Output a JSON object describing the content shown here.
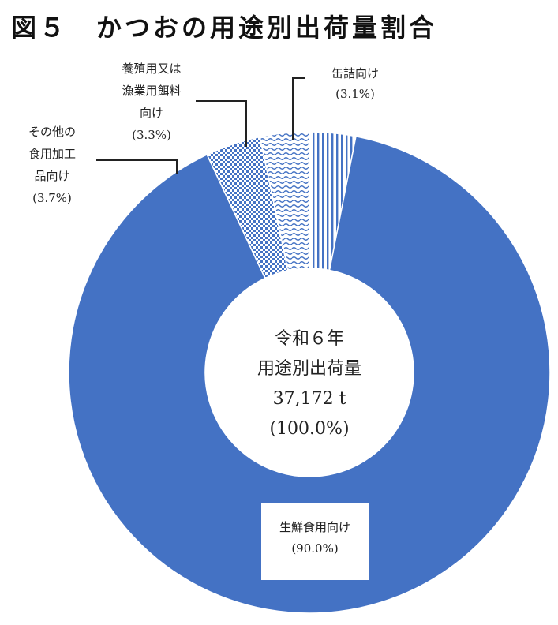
{
  "title": "図５　かつおの用途別出荷量割合",
  "chart_data": {
    "type": "pie",
    "title": "図５　かつおの用途別出荷量割合",
    "center_text": [
      "令和６年",
      "用途別出荷量",
      "37,172 t",
      "(100.0%)"
    ],
    "slices": [
      {
        "label_lines": [
          "缶詰向け",
          "(3.1%)"
        ],
        "value": 3.1,
        "fill": "vertical-stripes",
        "color": "#4472C4"
      },
      {
        "label_lines": [
          "生鮮食用向け",
          "(90.0%)"
        ],
        "value": 90.0,
        "fill": "solid",
        "color": "#4472C4"
      },
      {
        "label_lines": [
          "その他の",
          "食用加工",
          "品向け",
          "(3.7%)"
        ],
        "value": 3.7,
        "fill": "checker",
        "color": "#4472C4"
      },
      {
        "label_lines": [
          "養殖用又は",
          "漁業用餌料",
          "向け",
          "(3.3%)"
        ],
        "value": 3.3,
        "fill": "waves",
        "color": "#4472C4"
      }
    ]
  }
}
